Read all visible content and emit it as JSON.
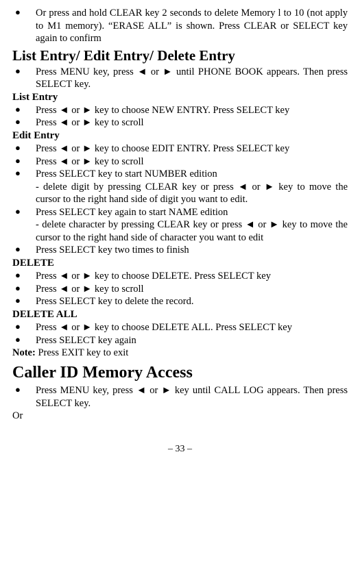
{
  "top_item": "Or press and hold CLEAR key 2 seconds to delete Memory l to 10 (not apply to M1 memory). “ERASE ALL” is shown. Press CLEAR or SELECT key again to confirm",
  "heading1": "List Entry/ Edit Entry/ Delete Entry",
  "h1_items": [
    "Press MENU key, press ◄ or ► until PHONE BOOK appears. Then press SELECT key."
  ],
  "list_entry_h": "List Entry",
  "list_entry_items": [
    "Press ◄ or ► key to choose NEW ENTRY. Press SELECT key",
    "Press ◄ or ► key to scroll"
  ],
  "edit_entry_h": "Edit Entry",
  "edit_entry_items": [
    "Press ◄ or ► key to choose EDIT ENTRY. Press SELECT key",
    "Press ◄ or ► key to scroll",
    "Press SELECT key to start NUMBER edition\n- delete digit by pressing CLEAR key or press ◄ or ► key to move the cursor to the right hand side of digit you want to edit.",
    "Press SELECT key again to start NAME edition\n- delete character by pressing CLEAR key or press ◄ or ► key to move the cursor to the right hand side of character you want to edit",
    "Press SELECT key two times to finish"
  ],
  "delete_h": "DELETE",
  "delete_items": [
    "Press ◄ or ► key to choose DELETE. Press SELECT key",
    "Press ◄ or ► key to scroll",
    "Press SELECT key to delete the record."
  ],
  "delete_all_h": "DELETE ALL",
  "delete_all_items": [
    "Press ◄ or ► key to choose DELETE ALL. Press SELECT key",
    "Press SELECT key again"
  ],
  "note_prefix": "Note: ",
  "note_text": "Press EXIT key to exit",
  "heading2": "Caller ID Memory Access",
  "h2_items": [
    "Press MENU key, press ◄ or ► key until CALL LOG appears. Then press SELECT key."
  ],
  "or_text": "Or",
  "page_number": "– 33 –"
}
